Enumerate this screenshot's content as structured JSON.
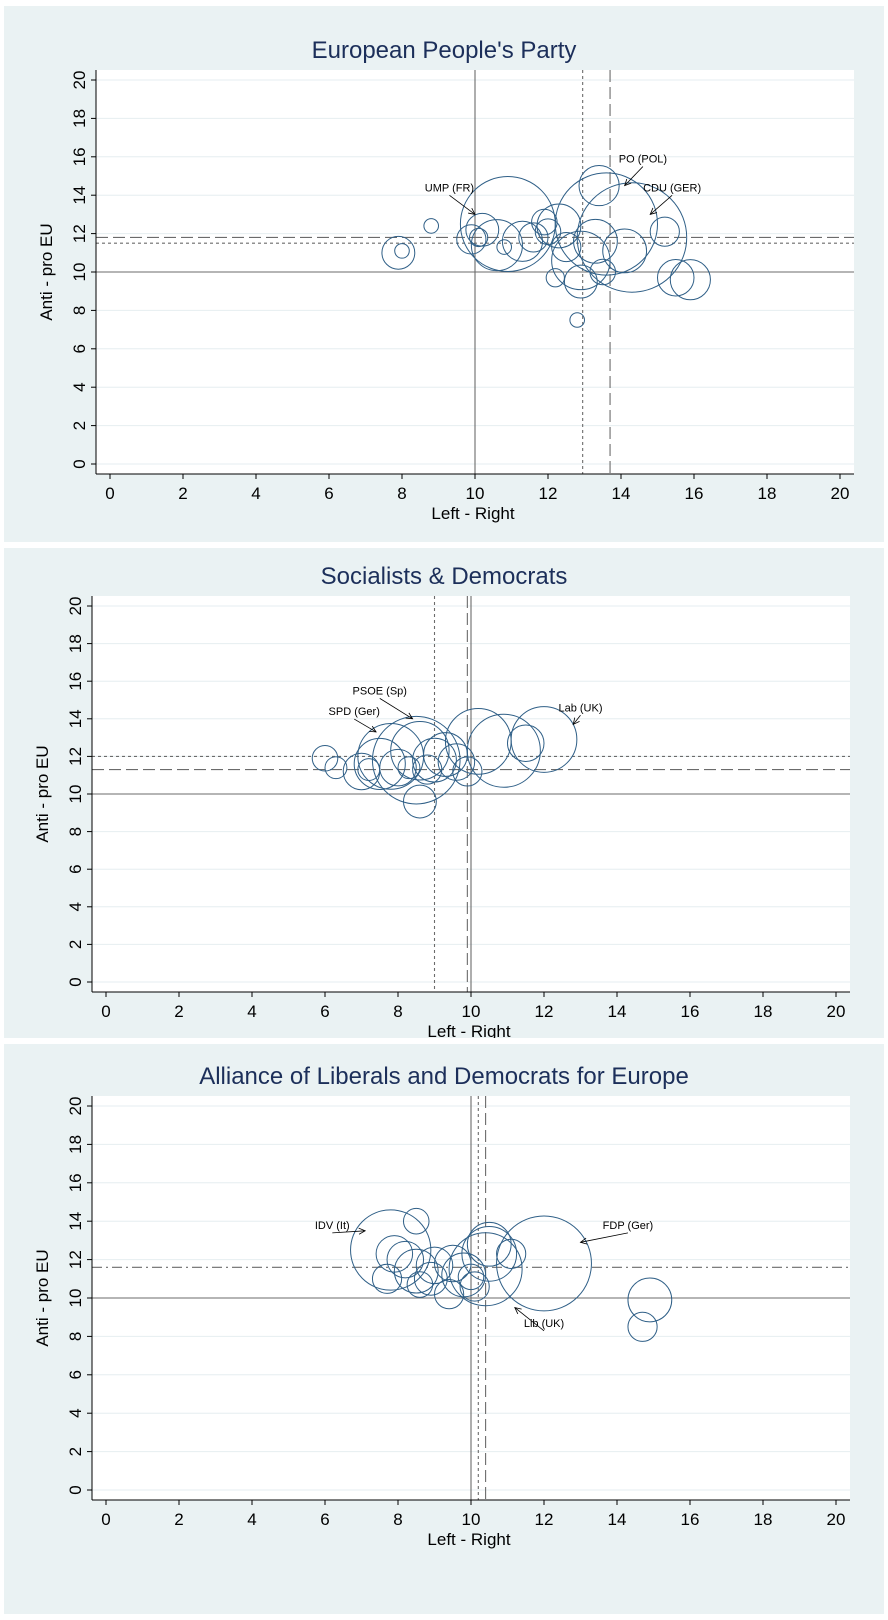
{
  "chart_data": [
    {
      "type": "scatter",
      "title": "European People's Party",
      "xlabel": "Left - Right",
      "ylabel": "Anti - pro EU",
      "xlim": [
        0,
        20
      ],
      "ylim": [
        0,
        20
      ],
      "xticks": [
        "0",
        "2",
        "4",
        "6",
        "8",
        "10",
        "12",
        "14",
        "16",
        "18",
        "20"
      ],
      "yticks": [
        "0",
        "2",
        "4",
        "6",
        "8",
        "10",
        "12",
        "14",
        "16",
        "18",
        "20"
      ],
      "grid": true,
      "legend": "none",
      "reference_lines": [
        {
          "axis": "x",
          "value": 10,
          "style": "solid"
        },
        {
          "axis": "y",
          "value": 10,
          "style": "solid"
        },
        {
          "axis": "x",
          "value": 12.95,
          "style": "dotted"
        },
        {
          "axis": "y",
          "value": 11.5,
          "style": "dotted"
        },
        {
          "axis": "x",
          "value": 13.7,
          "style": "dashed"
        },
        {
          "axis": "y",
          "value": 11.8,
          "style": "dashed"
        }
      ],
      "points": [
        {
          "x": 7.9,
          "y": 11.0,
          "r": 0.45
        },
        {
          "x": 8.0,
          "y": 11.1,
          "r": 0.2
        },
        {
          "x": 8.8,
          "y": 12.4,
          "r": 0.2
        },
        {
          "x": 9.9,
          "y": 11.7,
          "r": 0.4
        },
        {
          "x": 10.1,
          "y": 11.8,
          "r": 0.25
        },
        {
          "x": 10.2,
          "y": 12.2,
          "r": 0.45
        },
        {
          "x": 10.9,
          "y": 12.5,
          "r": 1.3
        },
        {
          "x": 10.6,
          "y": 11.4,
          "r": 0.7
        },
        {
          "x": 10.8,
          "y": 11.3,
          "r": 0.2
        },
        {
          "x": 11.3,
          "y": 11.6,
          "r": 0.55
        },
        {
          "x": 11.6,
          "y": 11.8,
          "r": 0.4
        },
        {
          "x": 11.9,
          "y": 12.6,
          "r": 0.35
        },
        {
          "x": 12.0,
          "y": 12.1,
          "r": 0.35
        },
        {
          "x": 12.3,
          "y": 12.4,
          "r": 0.6
        },
        {
          "x": 12.5,
          "y": 11.3,
          "r": 0.4
        },
        {
          "x": 12.2,
          "y": 9.7,
          "r": 0.25
        },
        {
          "x": 12.8,
          "y": 7.5,
          "r": 0.2
        },
        {
          "x": 12.9,
          "y": 9.5,
          "r": 0.45
        },
        {
          "x": 12.9,
          "y": 10.6,
          "r": 0.8
        },
        {
          "x": 13.3,
          "y": 11.6,
          "r": 0.6
        },
        {
          "x": 13.4,
          "y": 14.5,
          "r": 0.55
        },
        {
          "x": 13.6,
          "y": 12.5,
          "r": 1.4
        },
        {
          "x": 13.5,
          "y": 10.0,
          "r": 0.35
        },
        {
          "x": 14.3,
          "y": 11.8,
          "r": 1.5
        },
        {
          "x": 14.1,
          "y": 11.1,
          "r": 0.6
        },
        {
          "x": 15.2,
          "y": 12.1,
          "r": 0.4
        },
        {
          "x": 15.5,
          "y": 9.7,
          "r": 0.5
        },
        {
          "x": 15.9,
          "y": 9.6,
          "r": 0.55
        }
      ],
      "annotations": [
        {
          "text": "UMP (FR)",
          "x": 9.3,
          "y": 14.2,
          "tx": 10.0,
          "ty": 13.0
        },
        {
          "text": "PO (POL)",
          "x": 14.6,
          "y": 15.7,
          "tx": 14.1,
          "ty": 14.5
        },
        {
          "text": "CDU (GER)",
          "x": 15.4,
          "y": 14.2,
          "tx": 14.8,
          "ty": 13.0
        }
      ]
    },
    {
      "type": "scatter",
      "title": "Socialists & Democrats",
      "xlabel": "Left - Right",
      "ylabel": "Anti - pro EU",
      "xlim": [
        0,
        20
      ],
      "ylim": [
        0,
        20
      ],
      "xticks": [
        "0",
        "2",
        "4",
        "6",
        "8",
        "10",
        "12",
        "14",
        "16",
        "18",
        "20"
      ],
      "yticks": [
        "0",
        "2",
        "4",
        "6",
        "8",
        "10",
        "12",
        "14",
        "16",
        "18",
        "20"
      ],
      "grid": true,
      "legend": "none",
      "reference_lines": [
        {
          "axis": "x",
          "value": 10,
          "style": "solid"
        },
        {
          "axis": "y",
          "value": 10,
          "style": "solid"
        },
        {
          "axis": "x",
          "value": 9.0,
          "style": "dotted"
        },
        {
          "axis": "y",
          "value": 12.0,
          "style": "dotted"
        },
        {
          "axis": "x",
          "value": 9.9,
          "style": "dashed"
        },
        {
          "axis": "y",
          "value": 11.3,
          "style": "dashed"
        }
      ],
      "points": [
        {
          "x": 6.0,
          "y": 11.9,
          "r": 0.35
        },
        {
          "x": 6.3,
          "y": 11.4,
          "r": 0.3
        },
        {
          "x": 7.0,
          "y": 11.2,
          "r": 0.5
        },
        {
          "x": 7.2,
          "y": 11.3,
          "r": 0.3
        },
        {
          "x": 7.5,
          "y": 11.6,
          "r": 0.7
        },
        {
          "x": 7.8,
          "y": 12.0,
          "r": 0.9
        },
        {
          "x": 8.0,
          "y": 11.4,
          "r": 0.5
        },
        {
          "x": 8.3,
          "y": 11.4,
          "r": 0.3
        },
        {
          "x": 8.5,
          "y": 11.8,
          "r": 1.2
        },
        {
          "x": 8.6,
          "y": 12.3,
          "r": 0.8
        },
        {
          "x": 8.6,
          "y": 9.6,
          "r": 0.45
        },
        {
          "x": 8.8,
          "y": 11.3,
          "r": 0.4
        },
        {
          "x": 9.0,
          "y": 11.8,
          "r": 0.6
        },
        {
          "x": 9.3,
          "y": 12.1,
          "r": 0.6
        },
        {
          "x": 9.6,
          "y": 11.7,
          "r": 0.5
        },
        {
          "x": 9.9,
          "y": 11.2,
          "r": 0.4
        },
        {
          "x": 10.2,
          "y": 12.8,
          "r": 0.9
        },
        {
          "x": 10.9,
          "y": 12.3,
          "r": 1.0
        },
        {
          "x": 11.5,
          "y": 12.7,
          "r": 0.5
        },
        {
          "x": 12.0,
          "y": 12.9,
          "r": 0.9
        }
      ],
      "annotations": [
        {
          "text": "PSOE (Sp)",
          "x": 7.5,
          "y": 15.3,
          "tx": 8.4,
          "ty": 14.0
        },
        {
          "text": "SPD (Ger)",
          "x": 6.8,
          "y": 14.2,
          "tx": 7.4,
          "ty": 13.3
        },
        {
          "text": "Lab (UK)",
          "x": 13.0,
          "y": 14.4,
          "tx": 12.8,
          "ty": 13.7
        }
      ]
    },
    {
      "type": "scatter",
      "title": "Alliance of Liberals and Democrats for Europe",
      "xlabel": "Left - Right",
      "ylabel": "Anti - pro EU",
      "xlim": [
        0,
        20
      ],
      "ylim": [
        0,
        20
      ],
      "xticks": [
        "0",
        "2",
        "4",
        "6",
        "8",
        "10",
        "12",
        "14",
        "16",
        "18",
        "20"
      ],
      "yticks": [
        "0",
        "2",
        "4",
        "6",
        "8",
        "10",
        "12",
        "14",
        "16",
        "18",
        "20"
      ],
      "grid": true,
      "legend": "none",
      "reference_lines": [
        {
          "axis": "x",
          "value": 10,
          "style": "solid"
        },
        {
          "axis": "y",
          "value": 10,
          "style": "solid"
        },
        {
          "axis": "x",
          "value": 10.2,
          "style": "dotted"
        },
        {
          "axis": "x",
          "value": 10.4,
          "style": "dashed"
        },
        {
          "axis": "y",
          "value": 11.6,
          "style": "dashdot"
        }
      ],
      "points": [
        {
          "x": 7.7,
          "y": 11.0,
          "r": 0.4
        },
        {
          "x": 7.9,
          "y": 12.3,
          "r": 0.5
        },
        {
          "x": 7.8,
          "y": 12.5,
          "r": 1.1
        },
        {
          "x": 8.2,
          "y": 12.0,
          "r": 0.5
        },
        {
          "x": 8.5,
          "y": 14.0,
          "r": 0.35
        },
        {
          "x": 8.5,
          "y": 11.4,
          "r": 0.6
        },
        {
          "x": 8.6,
          "y": 10.7,
          "r": 0.35
        },
        {
          "x": 8.9,
          "y": 11.0,
          "r": 0.45
        },
        {
          "x": 9.0,
          "y": 11.7,
          "r": 0.5
        },
        {
          "x": 9.4,
          "y": 10.2,
          "r": 0.4
        },
        {
          "x": 9.5,
          "y": 11.8,
          "r": 0.5
        },
        {
          "x": 9.8,
          "y": 11.2,
          "r": 0.6
        },
        {
          "x": 10.0,
          "y": 11.1,
          "r": 0.35
        },
        {
          "x": 10.1,
          "y": 10.6,
          "r": 0.4
        },
        {
          "x": 10.4,
          "y": 11.5,
          "r": 1.0
        },
        {
          "x": 10.5,
          "y": 12.3,
          "r": 0.75
        },
        {
          "x": 10.5,
          "y": 12.8,
          "r": 0.6
        },
        {
          "x": 11.1,
          "y": 12.3,
          "r": 0.4
        },
        {
          "x": 12.0,
          "y": 11.8,
          "r": 1.3
        },
        {
          "x": 14.7,
          "y": 8.5,
          "r": 0.4
        },
        {
          "x": 14.9,
          "y": 9.9,
          "r": 0.6
        }
      ],
      "annotations": [
        {
          "text": "IDV (It)",
          "x": 6.2,
          "y": 13.6,
          "tx": 7.1,
          "ty": 13.5
        },
        {
          "text": "FDP (Ger)",
          "x": 14.3,
          "y": 13.6,
          "tx": 13.0,
          "ty": 12.9
        },
        {
          "text": "Lib (UK)",
          "x": 12.0,
          "y": 8.5,
          "tx": 11.2,
          "ty": 9.5
        }
      ]
    }
  ]
}
